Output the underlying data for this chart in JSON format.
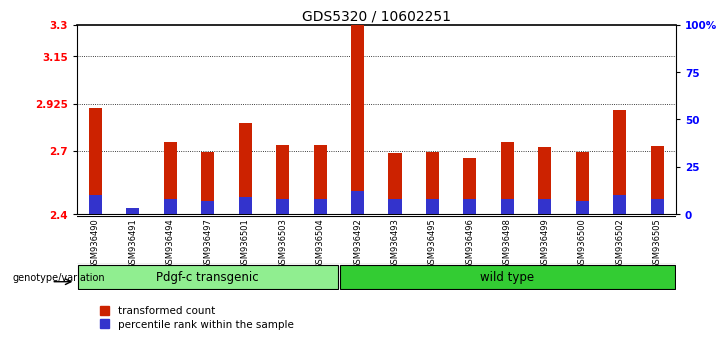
{
  "title": "GDS5320 / 10602251",
  "samples": [
    "GSM936490",
    "GSM936491",
    "GSM936494",
    "GSM936497",
    "GSM936501",
    "GSM936503",
    "GSM936504",
    "GSM936492",
    "GSM936493",
    "GSM936495",
    "GSM936496",
    "GSM936498",
    "GSM936499",
    "GSM936500",
    "GSM936502",
    "GSM936505"
  ],
  "transformed_count": [
    2.905,
    2.43,
    2.745,
    2.695,
    2.835,
    2.73,
    2.73,
    3.3,
    2.69,
    2.695,
    2.665,
    2.745,
    2.72,
    2.695,
    2.895,
    2.725
  ],
  "percentile_rank_pct": [
    10,
    3,
    8,
    7,
    9,
    8,
    8,
    12,
    8,
    8,
    8,
    8,
    8,
    7,
    10,
    8
  ],
  "groups": [
    {
      "label": "Pdgf-c transgenic",
      "start": 0,
      "end": 7,
      "color": "#90EE90"
    },
    {
      "label": "wild type",
      "start": 7,
      "end": 16,
      "color": "#33CC33"
    }
  ],
  "ylim_left": [
    2.4,
    3.3
  ],
  "ylim_right": [
    0,
    100
  ],
  "yticks_left": [
    2.4,
    2.7,
    2.925,
    3.15,
    3.3
  ],
  "ytick_labels_left": [
    "2.4",
    "2.7",
    "2.925",
    "3.15",
    "3.3"
  ],
  "yticks_right": [
    0,
    25,
    50,
    75,
    100
  ],
  "ytick_labels_right": [
    "0",
    "25",
    "50",
    "75",
    "100%"
  ],
  "bar_color_red": "#CC2200",
  "bar_color_blue": "#3333CC",
  "background_xtick": "#C8C8C8",
  "genotype_label": "genotype/variation",
  "legend_red": "transformed count",
  "legend_blue": "percentile rank within the sample",
  "title_fontsize": 10,
  "tick_fontsize": 7.5,
  "sample_fontsize": 6.0,
  "group_fontsize": 8.5,
  "legend_fontsize": 7.5
}
